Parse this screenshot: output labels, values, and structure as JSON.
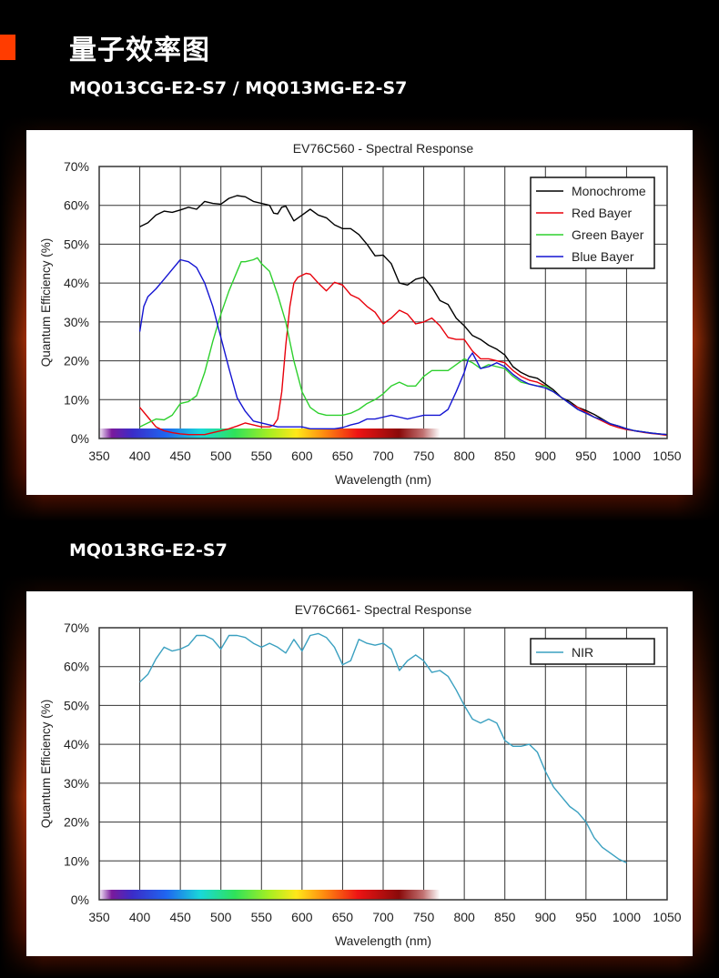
{
  "page": {
    "title": "量子效率图",
    "accent_color": "#ff3c00"
  },
  "sections": [
    {
      "title": "MQ013CG-E2-S7 / MQ013MG-E2-S7"
    },
    {
      "title": "MQ013RG-E2-S7"
    }
  ],
  "chart_data": [
    {
      "type": "line",
      "title": "EV76C560 - Spectral Response",
      "xlabel": "Wavelength (nm)",
      "ylabel": "Quantum Efficiency (%)",
      "xlim": [
        350,
        1050
      ],
      "ylim": [
        0,
        70
      ],
      "xticks": [
        350,
        400,
        450,
        500,
        550,
        600,
        650,
        700,
        750,
        800,
        850,
        900,
        950,
        1000,
        1050
      ],
      "yticks": [
        0,
        10,
        20,
        30,
        40,
        50,
        60,
        70
      ],
      "xtick_labels": [
        "350",
        "400",
        "450",
        "500",
        "550",
        "600",
        "650",
        "700",
        "750",
        "800",
        "850",
        "900",
        "950",
        "1000",
        "1050"
      ],
      "ytick_labels": [
        "0%",
        "10%",
        "20%",
        "30%",
        "40%",
        "50%",
        "60%",
        "70%"
      ],
      "grid": true,
      "legend_position": "top-right",
      "spectrum_band": [
        380,
        770
      ],
      "series": [
        {
          "name": "Monochrome",
          "color": "#000000",
          "x": [
            400,
            410,
            420,
            430,
            440,
            450,
            460,
            470,
            480,
            490,
            500,
            510,
            520,
            530,
            540,
            550,
            560,
            565,
            570,
            575,
            580,
            590,
            600,
            610,
            620,
            630,
            640,
            650,
            660,
            670,
            680,
            690,
            700,
            710,
            720,
            730,
            740,
            750,
            760,
            770,
            780,
            790,
            800,
            810,
            820,
            830,
            840,
            850,
            860,
            870,
            880,
            890,
            900,
            910,
            920,
            930,
            940,
            950,
            960,
            970,
            980,
            990,
            1000,
            1010,
            1020,
            1030,
            1040,
            1050
          ],
          "y": [
            54.5,
            55.5,
            57.5,
            58.5,
            58.2,
            58.8,
            59.5,
            59,
            61,
            60.5,
            60.3,
            61.8,
            62.5,
            62.2,
            61,
            60.5,
            60,
            58,
            57.8,
            59.5,
            59.8,
            56,
            57.5,
            59,
            57.5,
            56.8,
            55,
            54,
            54,
            52.5,
            50,
            47,
            47.2,
            45,
            40,
            39.5,
            41,
            41.5,
            39,
            35.5,
            34.5,
            31,
            29,
            26.5,
            25.5,
            24,
            23,
            21.5,
            18.5,
            17,
            16,
            15.5,
            14,
            12.5,
            10.5,
            9.5,
            8,
            7.2,
            6.2,
            5,
            3.8,
            3.2,
            2.5,
            2,
            1.7,
            1.4,
            1.2,
            1
          ]
        },
        {
          "name": "Red Bayer",
          "color": "#e8000b",
          "x": [
            400,
            410,
            420,
            430,
            440,
            450,
            460,
            470,
            480,
            490,
            500,
            510,
            520,
            530,
            540,
            550,
            560,
            565,
            570,
            575,
            580,
            585,
            590,
            595,
            600,
            605,
            610,
            620,
            630,
            640,
            650,
            660,
            670,
            680,
            690,
            700,
            710,
            720,
            730,
            740,
            750,
            760,
            770,
            780,
            790,
            800,
            810,
            820,
            830,
            840,
            850,
            860,
            870,
            880,
            890,
            900,
            910,
            920,
            930,
            940,
            950,
            960,
            970,
            980,
            990,
            1000,
            1010,
            1020,
            1030,
            1040,
            1050
          ],
          "y": [
            8,
            5.5,
            3,
            2,
            1.5,
            1.2,
            1,
            1,
            1,
            1.5,
            2,
            2.5,
            3.2,
            4,
            3.5,
            3,
            3,
            3.5,
            5,
            12,
            24,
            34,
            40,
            41.5,
            42,
            42.5,
            42.3,
            40,
            38,
            40.2,
            39.5,
            37,
            36,
            34,
            32.5,
            29.5,
            31,
            33,
            32,
            29.5,
            30,
            31,
            29,
            26,
            25.5,
            25.5,
            22.5,
            20.5,
            20.5,
            20,
            19.5,
            17.5,
            16,
            15,
            14.5,
            13.5,
            12,
            10.5,
            9,
            8,
            6.8,
            5.5,
            4.5,
            3.5,
            2.8,
            2.3,
            2,
            1.6,
            1.3,
            1.1,
            0.8
          ]
        },
        {
          "name": "Green Bayer",
          "color": "#2ed02e",
          "x": [
            400,
            410,
            420,
            430,
            440,
            450,
            460,
            470,
            480,
            490,
            500,
            510,
            520,
            525,
            530,
            540,
            545,
            550,
            560,
            570,
            580,
            590,
            600,
            610,
            620,
            630,
            640,
            650,
            660,
            670,
            680,
            690,
            700,
            710,
            720,
            730,
            740,
            750,
            760,
            770,
            780,
            790,
            800,
            810,
            820,
            830,
            840,
            850,
            860,
            870,
            880,
            890,
            900,
            910,
            920,
            930,
            940,
            950,
            960,
            970,
            980,
            990,
            1000,
            1010,
            1020,
            1030,
            1040,
            1050
          ],
          "y": [
            3,
            4,
            5,
            4.8,
            6,
            9,
            9.5,
            11,
            17,
            25,
            32,
            38,
            43,
            45.5,
            45.5,
            46,
            46.5,
            45,
            43,
            37,
            30,
            20,
            12,
            8,
            6.5,
            6,
            6,
            6,
            6.5,
            7.5,
            9,
            10,
            11.5,
            13.5,
            14.5,
            13.5,
            13.5,
            16,
            17.5,
            17.5,
            17.5,
            19,
            20.5,
            19.5,
            18,
            19,
            18.5,
            18,
            16,
            14.5,
            14,
            13.5,
            13.5,
            12,
            10.5,
            9,
            7.5,
            6.5,
            5.5,
            4.8,
            3.8,
            3.2,
            2.5,
            2,
            1.7,
            1.4,
            1.2,
            1
          ]
        },
        {
          "name": "Blue Bayer",
          "color": "#1414d2",
          "x": [
            400,
            405,
            410,
            420,
            430,
            440,
            450,
            460,
            470,
            480,
            490,
            500,
            510,
            520,
            530,
            540,
            550,
            560,
            570,
            580,
            590,
            600,
            610,
            620,
            630,
            640,
            650,
            660,
            670,
            680,
            690,
            700,
            710,
            720,
            730,
            740,
            750,
            760,
            770,
            780,
            790,
            800,
            805,
            810,
            820,
            830,
            840,
            850,
            860,
            870,
            880,
            890,
            900,
            910,
            920,
            930,
            940,
            950,
            960,
            970,
            980,
            990,
            1000,
            1010,
            1020,
            1030,
            1040,
            1050
          ],
          "y": [
            27.5,
            34,
            36.5,
            38.5,
            41,
            43.5,
            46,
            45.5,
            44,
            40,
            34,
            26,
            18,
            10.5,
            7,
            4.5,
            4,
            3.5,
            3,
            3,
            3,
            3,
            2.5,
            2.5,
            2.5,
            2.5,
            2.8,
            3.5,
            4,
            5,
            5,
            5.5,
            6,
            5.5,
            5,
            5.5,
            6,
            6,
            6,
            7.5,
            12,
            17,
            20.5,
            22,
            18,
            18.5,
            19.5,
            18.5,
            16.5,
            15,
            14,
            13.5,
            13,
            12,
            10.5,
            9,
            7.5,
            6.5,
            5.5,
            4.8,
            3.8,
            3.2,
            2.5,
            2,
            1.7,
            1.4,
            1.2,
            1
          ]
        }
      ]
    },
    {
      "type": "line",
      "title": "EV76C661- Spectral Response",
      "xlabel": "Wavelength (nm)",
      "ylabel": "Quantum Efficiency (%)",
      "xlim": [
        350,
        1050
      ],
      "ylim": [
        0,
        70
      ],
      "xticks": [
        350,
        400,
        450,
        500,
        550,
        600,
        650,
        700,
        750,
        800,
        850,
        900,
        950,
        1000,
        1050
      ],
      "yticks": [
        0,
        10,
        20,
        30,
        40,
        50,
        60,
        70
      ],
      "xtick_labels": [
        "350",
        "400",
        "450",
        "500",
        "550",
        "600",
        "650",
        "700",
        "750",
        "800",
        "850",
        "900",
        "950",
        "1000",
        "1050"
      ],
      "ytick_labels": [
        "0%",
        "10%",
        "20%",
        "30%",
        "40%",
        "50%",
        "60%",
        "70%"
      ],
      "grid": true,
      "legend_position": "top-right",
      "spectrum_band": [
        380,
        770
      ],
      "series": [
        {
          "name": "NIR",
          "color": "#3aa0c0",
          "x": [
            400,
            410,
            420,
            430,
            440,
            450,
            460,
            470,
            480,
            490,
            500,
            510,
            520,
            530,
            540,
            550,
            560,
            570,
            580,
            590,
            600,
            610,
            620,
            630,
            640,
            650,
            660,
            670,
            680,
            690,
            700,
            710,
            720,
            730,
            740,
            750,
            760,
            770,
            780,
            790,
            800,
            810,
            820,
            830,
            840,
            850,
            860,
            870,
            880,
            890,
            900,
            910,
            920,
            930,
            940,
            950,
            960,
            970,
            980,
            990,
            1000
          ],
          "y": [
            56,
            58,
            62,
            65,
            64,
            64.5,
            65.5,
            68,
            68,
            67,
            64.5,
            68,
            68,
            67.5,
            66,
            65,
            66,
            65,
            63.5,
            67,
            64,
            68,
            68.5,
            67.5,
            65,
            60.5,
            61.5,
            67,
            66,
            65.5,
            66,
            64.5,
            59,
            61.5,
            63,
            61.5,
            58.5,
            59,
            57.5,
            54,
            50,
            46.5,
            45.5,
            46.5,
            45.5,
            41,
            39.5,
            39.5,
            40,
            38,
            33,
            29,
            26.5,
            24,
            22.5,
            20,
            16,
            13.5,
            12,
            10.5,
            9.5
          ]
        }
      ]
    }
  ]
}
